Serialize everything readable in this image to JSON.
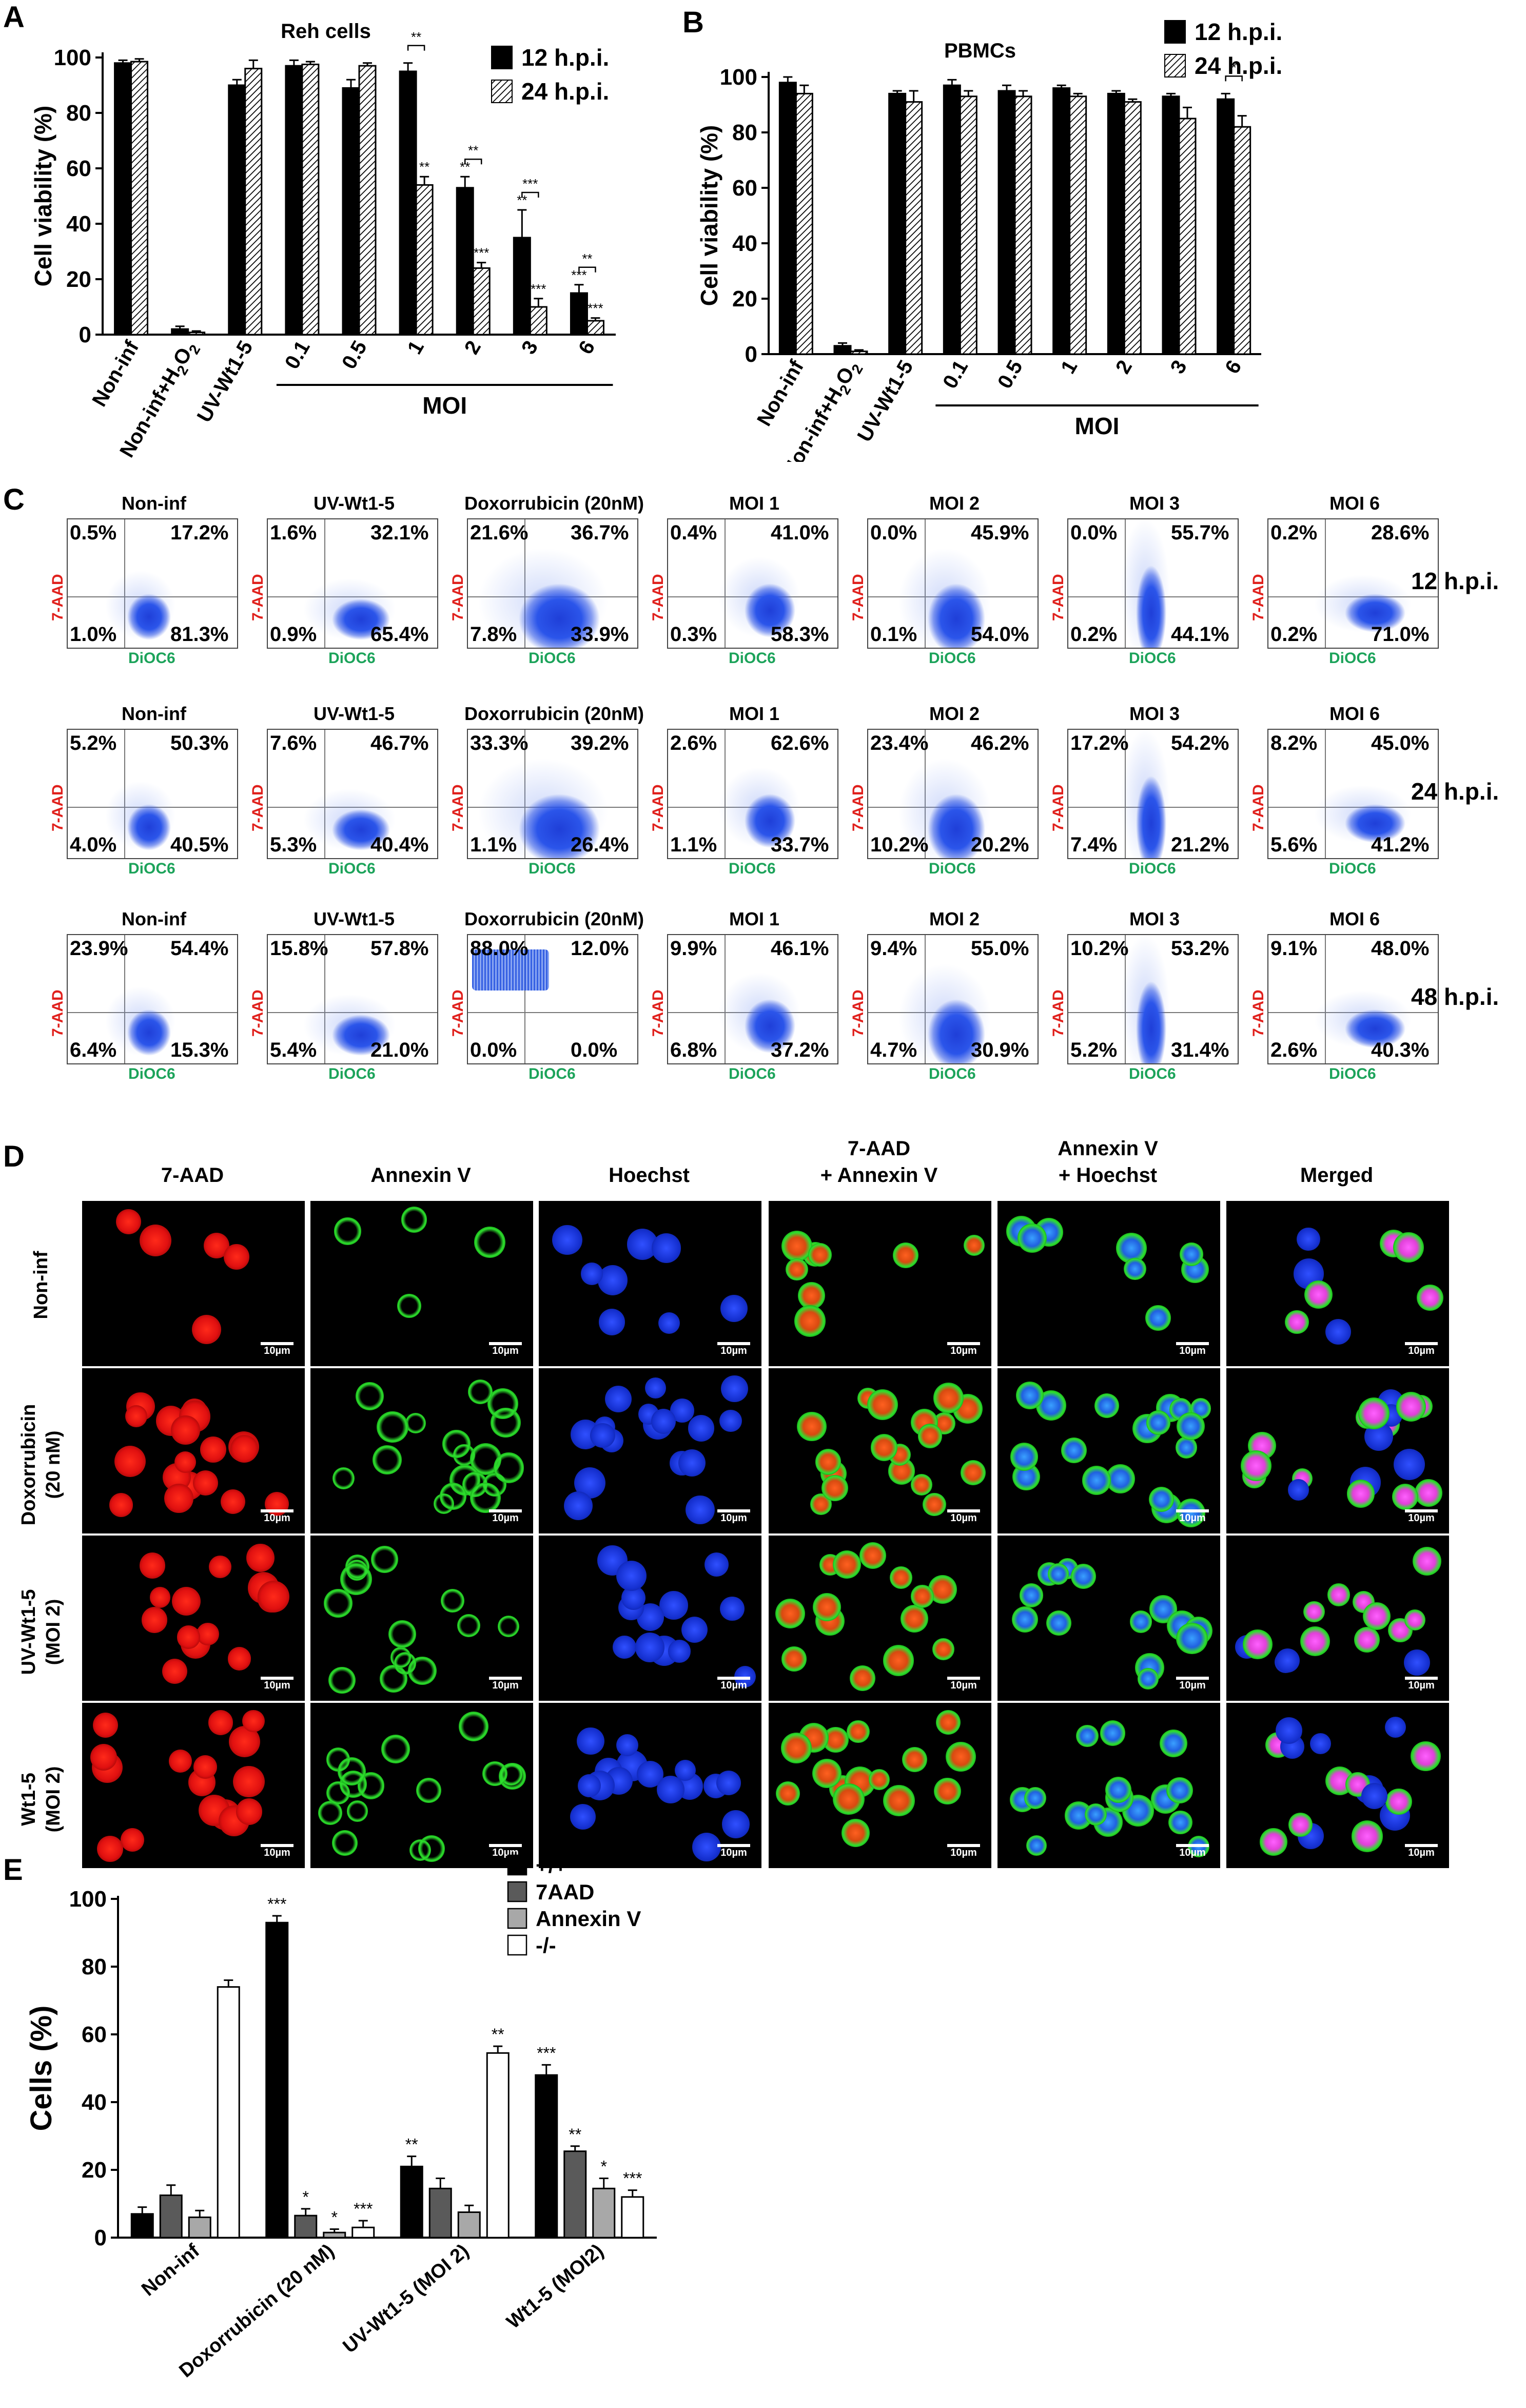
{
  "panel_labels": [
    "A",
    "B",
    "C",
    "D",
    "E"
  ],
  "colors": {
    "black_bar": "#000000",
    "dark_gray": "#5a5a5a",
    "light_gray": "#a8a8a8",
    "white_bar": "#ffffff",
    "red_label": "#e0201c",
    "green_label": "#1ca35a",
    "dot_blue": "#1f4fe0"
  },
  "chart_data": [
    {
      "id": "A",
      "type": "bar",
      "title": "Reh cells",
      "ylabel": "Cell viability (%)",
      "ylim": [
        0,
        100
      ],
      "yticks": [
        0,
        20,
        40,
        60,
        80,
        100
      ],
      "categories": [
        "Non-inf",
        "Non-inf+H2O2",
        "UV-Wt1-5",
        "0.1",
        "0.5",
        "1",
        "2",
        "3",
        "6"
      ],
      "group_label": "MOI",
      "series": [
        {
          "name": "12 h.p.i.",
          "values": [
            98,
            2,
            90,
            97,
            89,
            95,
            53,
            35,
            15
          ],
          "errors": [
            1,
            1,
            2,
            2,
            3,
            3,
            4,
            10,
            3
          ],
          "stars": [
            "",
            "",
            "",
            "",
            "",
            "",
            "**",
            "**",
            "***"
          ]
        },
        {
          "name": "24 h.p.i.",
          "values": [
            98.5,
            0.8,
            96,
            97.5,
            97,
            54,
            24,
            10,
            5
          ],
          "errors": [
            1,
            0.5,
            3,
            1,
            1,
            3,
            2,
            3,
            1
          ],
          "stars": [
            "",
            "",
            "",
            "",
            "",
            "**",
            "***",
            "***",
            "***"
          ]
        }
      ],
      "brackets": [
        {
          "category": "1",
          "label": "**"
        },
        {
          "category": "2",
          "label": "**"
        },
        {
          "category": "3",
          "label": "***"
        },
        {
          "category": "6",
          "label": "**"
        }
      ]
    },
    {
      "id": "B",
      "type": "bar",
      "title": "PBMCs",
      "ylabel": "Cell viability (%)",
      "ylim": [
        0,
        100
      ],
      "yticks": [
        0,
        20,
        40,
        60,
        80,
        100
      ],
      "categories": [
        "Non-inf",
        "Non-inf+H2O2",
        "UV-Wt1-5",
        "0.1",
        "0.5",
        "1",
        "2",
        "3",
        "6"
      ],
      "group_label": "MOI",
      "series": [
        {
          "name": "12 h.p.i.",
          "values": [
            98,
            3,
            94,
            97,
            95,
            96,
            94,
            93,
            92
          ],
          "errors": [
            2,
            1,
            1,
            2,
            2,
            1,
            1,
            1,
            2
          ],
          "stars": [
            "",
            "",
            "",
            "",
            "",
            "",
            "",
            "",
            ""
          ]
        },
        {
          "name": "24 h.p.i.",
          "values": [
            94,
            1,
            91,
            93,
            93,
            93,
            91,
            85,
            82
          ],
          "errors": [
            3,
            0.5,
            4,
            2,
            2,
            1,
            1,
            4,
            4
          ],
          "stars": [
            "",
            "",
            "",
            "",
            "",
            "",
            "",
            "",
            ""
          ]
        }
      ],
      "brackets": [
        {
          "category": "6",
          "label": "*"
        }
      ]
    },
    {
      "id": "E",
      "type": "bar",
      "ylabel": "Cells (%)",
      "ylim": [
        0,
        100
      ],
      "yticks": [
        0,
        20,
        40,
        60,
        80,
        100
      ],
      "categories": [
        "Non-inf",
        "Doxorrubicin (20 nM)",
        "UV-Wt1-5 (MOI 2)",
        "Wt1-5 (MOI2)"
      ],
      "series": [
        {
          "name": "+/+",
          "values": [
            7,
            93,
            21,
            48
          ],
          "errors": [
            2,
            2,
            3,
            3
          ],
          "stars": [
            "",
            "***",
            "**",
            "***"
          ]
        },
        {
          "name": "7AAD",
          "values": [
            12.5,
            6.5,
            14.5,
            25.5
          ],
          "errors": [
            3,
            2,
            3,
            1.5
          ],
          "stars": [
            "",
            "*",
            "",
            "**"
          ]
        },
        {
          "name": "Annexin V",
          "values": [
            6,
            1.5,
            7.5,
            14.5
          ],
          "errors": [
            2,
            1,
            2,
            3
          ],
          "stars": [
            "",
            "*",
            "",
            "*"
          ]
        },
        {
          "name": "-/-",
          "values": [
            74,
            3,
            54.5,
            12
          ],
          "errors": [
            2,
            2,
            2,
            2
          ],
          "stars": [
            "",
            "***",
            "**",
            "***"
          ]
        }
      ]
    }
  ],
  "flow": {
    "ylabel": "7-AAD",
    "xlabel": "DiOC6",
    "conditions": [
      "Non-inf",
      "UV-Wt1-5",
      "Doxorrubicin (20nM)",
      "MOI 1",
      "MOI 2",
      "MOI 3",
      "MOI 6"
    ],
    "rows": [
      {
        "time": "12 h.p.i.",
        "quads": [
          [
            "0.5%",
            "17.2%",
            "1.0%",
            "81.3%"
          ],
          [
            "1.6%",
            "32.1%",
            "0.9%",
            "65.4%"
          ],
          [
            "21.6%",
            "36.7%",
            "7.8%",
            "33.9%"
          ],
          [
            "0.4%",
            "41.0%",
            "0.3%",
            "58.3%"
          ],
          [
            "0.0%",
            "45.9%",
            "0.1%",
            "54.0%"
          ],
          [
            "0.0%",
            "55.7%",
            "0.2%",
            "44.1%"
          ],
          [
            "0.2%",
            "28.6%",
            "0.2%",
            "71.0%"
          ]
        ]
      },
      {
        "time": "24 h.p.i.",
        "quads": [
          [
            "5.2%",
            "50.3%",
            "4.0%",
            "40.5%"
          ],
          [
            "7.6%",
            "46.7%",
            "5.3%",
            "40.4%"
          ],
          [
            "33.3%",
            "39.2%",
            "1.1%",
            "26.4%"
          ],
          [
            "2.6%",
            "62.6%",
            "1.1%",
            "33.7%"
          ],
          [
            "23.4%",
            "46.2%",
            "10.2%",
            "20.2%"
          ],
          [
            "17.2%",
            "54.2%",
            "7.4%",
            "21.2%"
          ],
          [
            "8.2%",
            "45.0%",
            "5.6%",
            "41.2%"
          ]
        ]
      },
      {
        "time": "48 h.p.i.",
        "quads": [
          [
            "23.9%",
            "54.4%",
            "6.4%",
            "15.3%"
          ],
          [
            "15.8%",
            "57.8%",
            "5.4%",
            "21.0%"
          ],
          [
            "88.0%",
            "12.0%",
            "0.0%",
            "0.0%"
          ],
          [
            "9.9%",
            "46.1%",
            "6.8%",
            "37.2%"
          ],
          [
            "9.4%",
            "55.0%",
            "4.7%",
            "30.9%"
          ],
          [
            "10.2%",
            "53.2%",
            "5.2%",
            "31.4%"
          ],
          [
            "9.1%",
            "48.0%",
            "2.6%",
            "40.3%"
          ]
        ]
      }
    ]
  },
  "micro": {
    "columns": [
      [
        "7-AAD"
      ],
      [
        "Annexin V"
      ],
      [
        "Hoechst"
      ],
      [
        "7-AAD",
        "+ Annexin V"
      ],
      [
        "Annexin V",
        "+ Hoechst"
      ],
      [
        "Merged"
      ]
    ],
    "rows": [
      [
        "Non-inf"
      ],
      [
        "Doxorrubicin",
        "(20 nM)"
      ],
      [
        "UV-Wt1-5",
        "(MOI 2)"
      ],
      [
        "Wt1-5",
        "(MOI 2)"
      ]
    ],
    "scale_label": "10µm"
  }
}
